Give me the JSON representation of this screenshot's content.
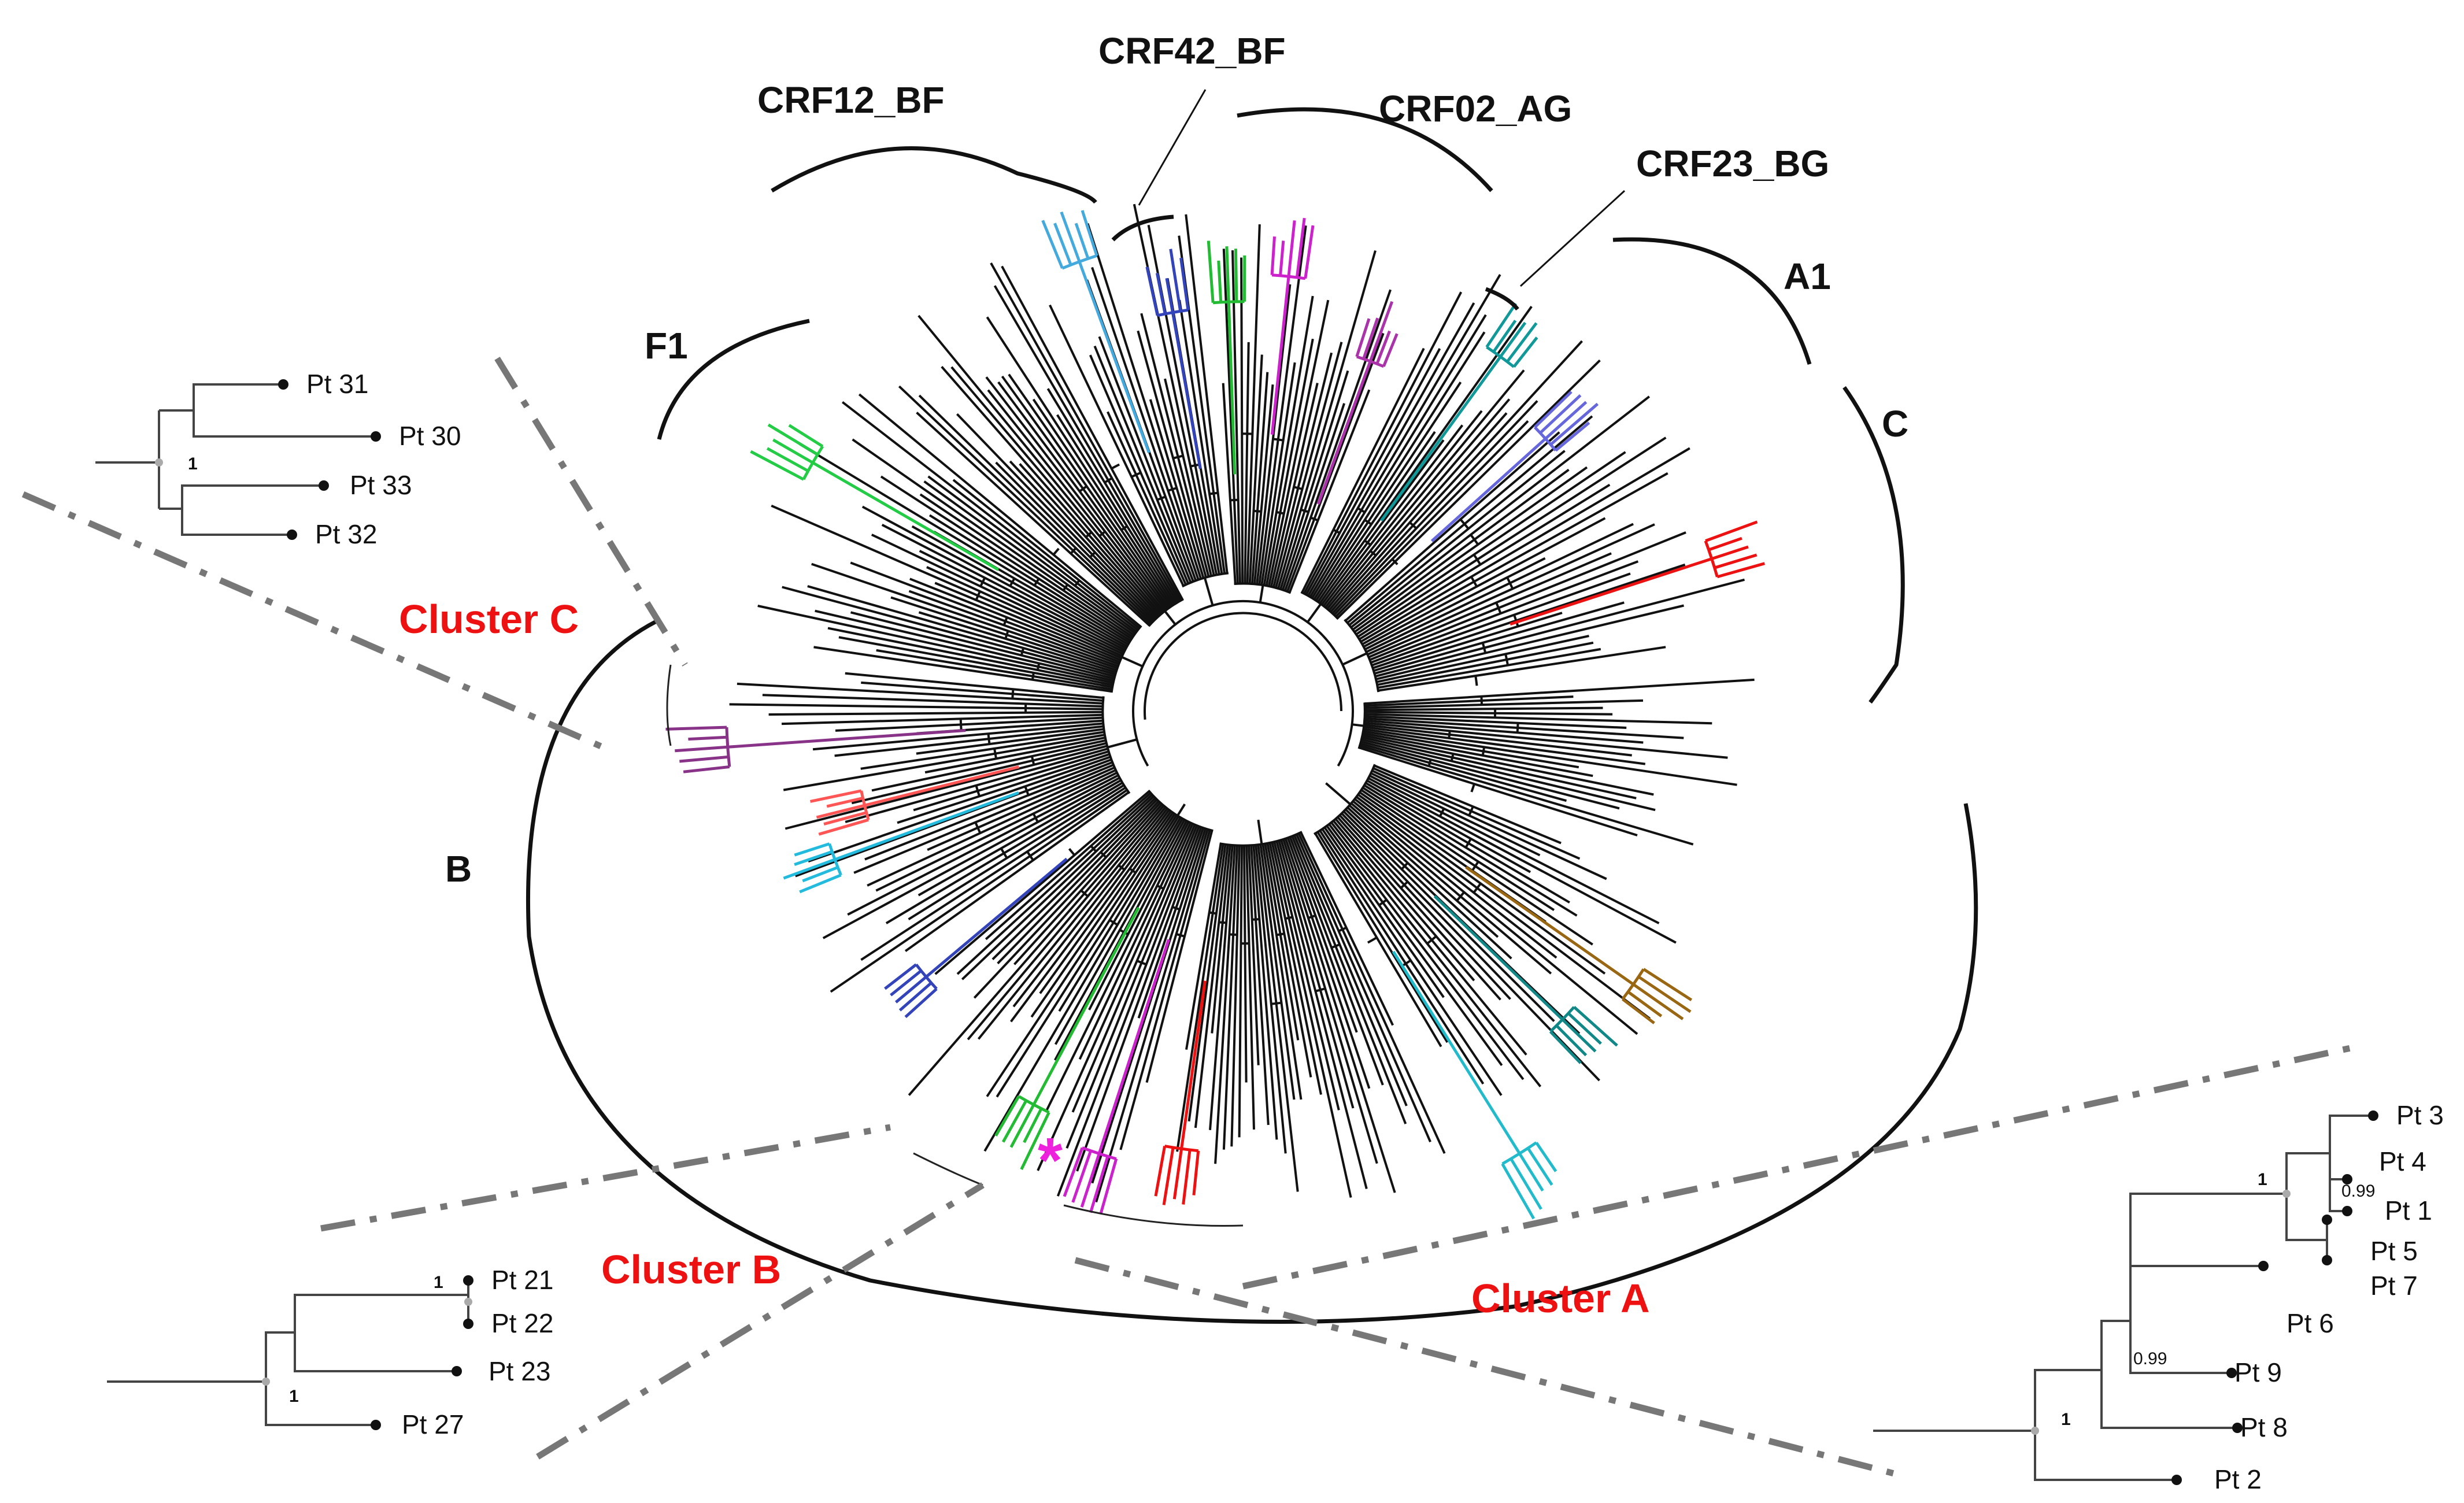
{
  "figure": {
    "subtypes": {
      "crf12_bf": "CRF12_BF",
      "crf42_bf": "CRF42_BF",
      "crf02_ag": "CRF02_AG",
      "crf23_bg": "CRF23_BG",
      "a1": "A1",
      "c": "C",
      "f1": "F1",
      "b": "B"
    },
    "clusters": {
      "a": "Cluster A",
      "b": "Cluster B",
      "c": "Cluster C"
    },
    "highlight_mark": "*",
    "colors": {
      "cluster_label": "#ee1111",
      "subtree": "#444444",
      "leader": "#777777"
    },
    "insets": {
      "cluster_c": {
        "leaves": [
          "Pt 31",
          "Pt 30",
          "Pt 33",
          "Pt 32"
        ],
        "support": [
          "1"
        ]
      },
      "cluster_b": {
        "leaves": [
          "Pt 21",
          "Pt 22",
          "Pt 23",
          "Pt 27"
        ],
        "support": [
          "1",
          "1"
        ]
      },
      "cluster_a": {
        "leaves": [
          "Pt 3",
          "Pt 4",
          "Pt 1",
          "Pt 5",
          "Pt 7",
          "Pt 6",
          "Pt 9",
          "Pt 8",
          "Pt 2"
        ],
        "support": [
          "0.99",
          "1",
          "0.99",
          "1"
        ]
      }
    }
  }
}
